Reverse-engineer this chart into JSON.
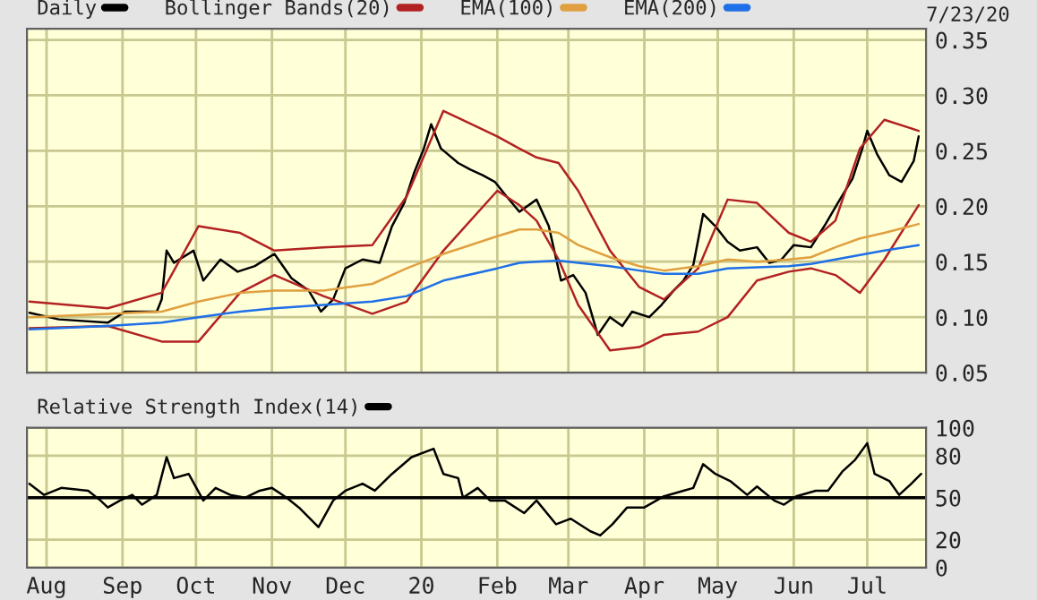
{
  "chart_data": [
    {
      "type": "line",
      "legend": "top",
      "grid": true,
      "tick_labels": "y",
      "annotations": [
        "7/23/20"
      ],
      "xlim": [
        "2019-07-24",
        "2020-07-25"
      ],
      "ylim": [
        0.05,
        0.36
      ],
      "yticks": [
        0.05,
        {
          "value": 0.1,
          "label": "0.10"
        },
        0.15,
        {
          "value": 0.2,
          "label": "0.20"
        },
        0.25,
        {
          "value": 0.3,
          "label": "0.30"
        },
        0.35
      ],
      "series": [
        {
          "name": "Daily",
          "color": "#000000",
          "x": [
            "2019-07-25",
            "2019-08-06",
            "2019-08-26",
            "2019-09-02",
            "2019-09-15",
            "2019-09-17",
            "2019-09-19",
            "2019-09-22",
            "2019-09-30",
            "2019-10-04",
            "2019-10-11",
            "2019-10-18",
            "2019-10-25",
            "2019-11-02",
            "2019-11-09",
            "2019-11-16",
            "2019-11-21",
            "2019-11-26",
            "2019-12-01",
            "2019-12-08",
            "2019-12-15",
            "2019-12-20",
            "2019-12-25",
            "2019-12-29",
            "2020-01-02",
            "2020-01-05",
            "2020-01-09",
            "2020-01-16",
            "2020-01-21",
            "2020-01-26",
            "2020-01-31",
            "2020-02-04",
            "2020-02-10",
            "2020-02-17",
            "2020-02-22",
            "2020-02-27",
            "2020-03-03",
            "2020-03-08",
            "2020-03-13",
            "2020-03-18",
            "2020-03-23",
            "2020-03-27",
            "2020-04-03",
            "2020-04-08",
            "2020-04-13",
            "2020-04-17",
            "2020-04-21",
            "2020-04-25",
            "2020-04-30",
            "2020-05-05",
            "2020-05-10",
            "2020-05-17",
            "2020-05-22",
            "2020-05-27",
            "2020-06-01",
            "2020-06-08",
            "2020-06-14",
            "2020-06-19",
            "2020-06-25",
            "2020-06-29",
            "2020-07-01",
            "2020-07-05",
            "2020-07-10",
            "2020-07-15",
            "2020-07-20",
            "2020-07-22"
          ],
          "values": [
            0.104,
            0.098,
            0.095,
            0.105,
            0.105,
            0.116,
            0.16,
            0.149,
            0.16,
            0.133,
            0.152,
            0.141,
            0.146,
            0.157,
            0.135,
            0.124,
            0.105,
            0.116,
            0.144,
            0.152,
            0.149,
            0.182,
            0.203,
            0.23,
            0.252,
            0.274,
            0.252,
            0.239,
            0.233,
            0.228,
            0.222,
            0.211,
            0.195,
            0.206,
            0.182,
            0.133,
            0.138,
            0.122,
            0.084,
            0.1,
            0.092,
            0.105,
            0.1,
            0.111,
            0.124,
            0.133,
            0.147,
            0.193,
            0.182,
            0.168,
            0.16,
            0.163,
            0.149,
            0.152,
            0.165,
            0.163,
            0.184,
            0.203,
            0.225,
            0.252,
            0.268,
            0.247,
            0.228,
            0.222,
            0.241,
            0.263
          ]
        },
        {
          "name": "Bollinger Bands(20)",
          "color": "#b22222",
          "x": [
            "2019-07-25",
            "2019-08-26",
            "2019-09-17",
            "2019-10-02",
            "2019-10-19",
            "2019-11-02",
            "2019-11-22",
            "2019-12-12",
            "2019-12-26",
            "2020-01-10",
            "2020-02-01",
            "2020-02-10",
            "2020-02-17",
            "2020-02-26",
            "2020-03-05",
            "2020-03-18",
            "2020-03-30",
            "2020-04-09",
            "2020-04-23",
            "2020-05-05",
            "2020-05-17",
            "2020-05-30",
            "2020-06-08",
            "2020-06-18",
            "2020-06-28",
            "2020-07-08",
            "2020-07-22"
          ],
          "values": [
            0.114,
            0.108,
            0.122,
            0.182,
            0.176,
            0.16,
            0.163,
            0.165,
            0.209,
            0.286,
            0.263,
            0.252,
            0.244,
            0.239,
            0.214,
            0.16,
            0.127,
            0.116,
            0.144,
            0.206,
            0.203,
            0.176,
            0.168,
            0.187,
            0.252,
            0.278,
            0.268
          ]
        },
        {
          "color": "#b22222",
          "x": [
            "2019-07-25",
            "2019-08-26",
            "2019-09-17",
            "2019-10-02",
            "2019-10-19",
            "2019-11-02",
            "2019-11-22",
            "2019-12-12",
            "2019-12-26",
            "2020-01-10",
            "2020-02-01",
            "2020-02-10",
            "2020-02-17",
            "2020-02-26",
            "2020-03-05",
            "2020-03-18",
            "2020-03-30",
            "2020-04-09",
            "2020-04-23",
            "2020-05-05",
            "2020-05-17",
            "2020-05-30",
            "2020-06-08",
            "2020-06-18",
            "2020-06-28",
            "2020-07-08",
            "2020-07-22"
          ],
          "values": [
            0.09,
            0.092,
            0.078,
            0.078,
            0.122,
            0.138,
            0.119,
            0.103,
            0.114,
            0.16,
            0.214,
            0.201,
            0.187,
            0.152,
            0.111,
            0.07,
            0.073,
            0.084,
            0.087,
            0.1,
            0.133,
            0.141,
            0.144,
            0.138,
            0.122,
            0.152,
            0.201
          ]
        },
        {
          "name": "EMA(100)",
          "color": "#e0a040",
          "x": [
            "2019-07-25",
            "2019-08-26",
            "2019-09-17",
            "2019-10-02",
            "2019-10-19",
            "2019-11-02",
            "2019-11-22",
            "2019-12-12",
            "2019-12-26",
            "2020-01-10",
            "2020-02-01",
            "2020-02-10",
            "2020-02-17",
            "2020-02-26",
            "2020-03-05",
            "2020-03-18",
            "2020-03-30",
            "2020-04-09",
            "2020-04-23",
            "2020-05-05",
            "2020-05-17",
            "2020-05-30",
            "2020-06-08",
            "2020-06-18",
            "2020-06-28",
            "2020-07-08",
            "2020-07-22"
          ],
          "values": [
            0.1,
            0.103,
            0.105,
            0.114,
            0.122,
            0.124,
            0.124,
            0.13,
            0.144,
            0.157,
            0.173,
            0.179,
            0.179,
            0.176,
            0.165,
            0.154,
            0.146,
            0.142,
            0.146,
            0.152,
            0.15,
            0.152,
            0.154,
            0.163,
            0.171,
            0.176,
            0.184
          ]
        },
        {
          "name": "EMA(200)",
          "color": "#1e6fe8",
          "x": [
            "2019-07-25",
            "2019-08-26",
            "2019-09-17",
            "2019-10-02",
            "2019-10-19",
            "2019-11-02",
            "2019-11-22",
            "2019-12-12",
            "2019-12-26",
            "2020-01-10",
            "2020-02-01",
            "2020-02-10",
            "2020-02-17",
            "2020-02-26",
            "2020-03-05",
            "2020-03-18",
            "2020-03-30",
            "2020-04-09",
            "2020-04-23",
            "2020-05-05",
            "2020-05-17",
            "2020-05-30",
            "2020-06-08",
            "2020-06-18",
            "2020-06-28",
            "2020-07-08",
            "2020-07-22"
          ],
          "values": [
            0.089,
            0.092,
            0.095,
            0.1,
            0.105,
            0.108,
            0.111,
            0.114,
            0.119,
            0.133,
            0.144,
            0.149,
            0.15,
            0.151,
            0.149,
            0.146,
            0.142,
            0.139,
            0.139,
            0.144,
            0.145,
            0.146,
            0.148,
            0.152,
            0.156,
            0.16,
            0.165
          ]
        }
      ]
    },
    {
      "type": "line",
      "legend": "top left",
      "grid": true,
      "xlim": [
        "2019-07-24",
        "2020-07-25"
      ],
      "ylim": [
        0,
        100
      ],
      "yticks": [
        0,
        20,
        50,
        80,
        100
      ],
      "xticks": [
        {
          "value": "2019-08-01",
          "label": "Aug"
        },
        {
          "value": "2019-09-01",
          "label": "Sep"
        },
        {
          "value": "2019-10-01",
          "label": "Oct"
        },
        {
          "value": "2019-11-01",
          "label": "Nov"
        },
        {
          "value": "2019-12-01",
          "label": "Dec"
        },
        {
          "value": "2020-01-01",
          "label": "20"
        },
        {
          "value": "2020-02-01",
          "label": "Feb"
        },
        {
          "value": "2020-03-01",
          "label": "Mar"
        },
        {
          "value": "2020-04-01",
          "label": "Apr"
        },
        {
          "value": "2020-05-01",
          "label": "May"
        },
        {
          "value": "2020-06-01",
          "label": "Jun"
        },
        {
          "value": "2020-07-01",
          "label": "Jul"
        }
      ],
      "ref_lines": [
        {
          "axis": "y",
          "value": 50,
          "color": "#000000"
        }
      ],
      "series": [
        {
          "name": "Relative Strength Index(14)",
          "color": "#000000",
          "x": [
            "2019-07-25",
            "2019-07-31",
            "2019-08-07",
            "2019-08-18",
            "2019-08-23",
            "2019-08-26",
            "2019-08-31",
            "2019-09-05",
            "2019-09-09",
            "2019-09-15",
            "2019-09-19",
            "2019-09-22",
            "2019-09-28",
            "2019-10-04",
            "2019-10-09",
            "2019-10-15",
            "2019-10-21",
            "2019-10-27",
            "2019-11-01",
            "2019-11-07",
            "2019-11-12",
            "2019-11-20",
            "2019-11-26",
            "2019-12-01",
            "2019-12-08",
            "2019-12-13",
            "2019-12-20",
            "2019-12-28",
            "2020-01-06",
            "2020-01-10",
            "2020-01-16",
            "2020-01-18",
            "2020-01-24",
            "2020-01-29",
            "2020-02-04",
            "2020-02-12",
            "2020-02-17",
            "2020-02-25",
            "2020-03-02",
            "2020-03-10",
            "2020-03-14",
            "2020-03-19",
            "2020-03-25",
            "2020-04-01",
            "2020-04-09",
            "2020-04-17",
            "2020-04-21",
            "2020-04-25",
            "2020-04-30",
            "2020-05-06",
            "2020-05-13",
            "2020-05-17",
            "2020-05-24",
            "2020-05-28",
            "2020-06-02",
            "2020-06-10",
            "2020-06-15",
            "2020-06-21",
            "2020-06-26",
            "2020-07-01",
            "2020-07-04",
            "2020-07-10",
            "2020-07-14",
            "2020-07-19",
            "2020-07-23"
          ],
          "values": [
            60,
            52,
            57,
            55,
            48,
            43,
            48,
            52,
            45,
            52,
            79,
            64,
            67,
            48,
            57,
            52,
            50,
            55,
            57,
            50,
            43,
            29,
            48,
            55,
            60,
            55,
            67,
            79,
            85,
            67,
            64,
            50,
            57,
            48,
            48,
            39,
            48,
            31,
            35,
            26,
            23,
            31,
            43,
            43,
            51,
            55,
            57,
            74,
            67,
            62,
            52,
            58,
            48,
            45,
            51,
            55,
            55,
            69,
            77,
            89,
            67,
            62,
            52,
            60,
            67
          ]
        }
      ]
    }
  ]
}
